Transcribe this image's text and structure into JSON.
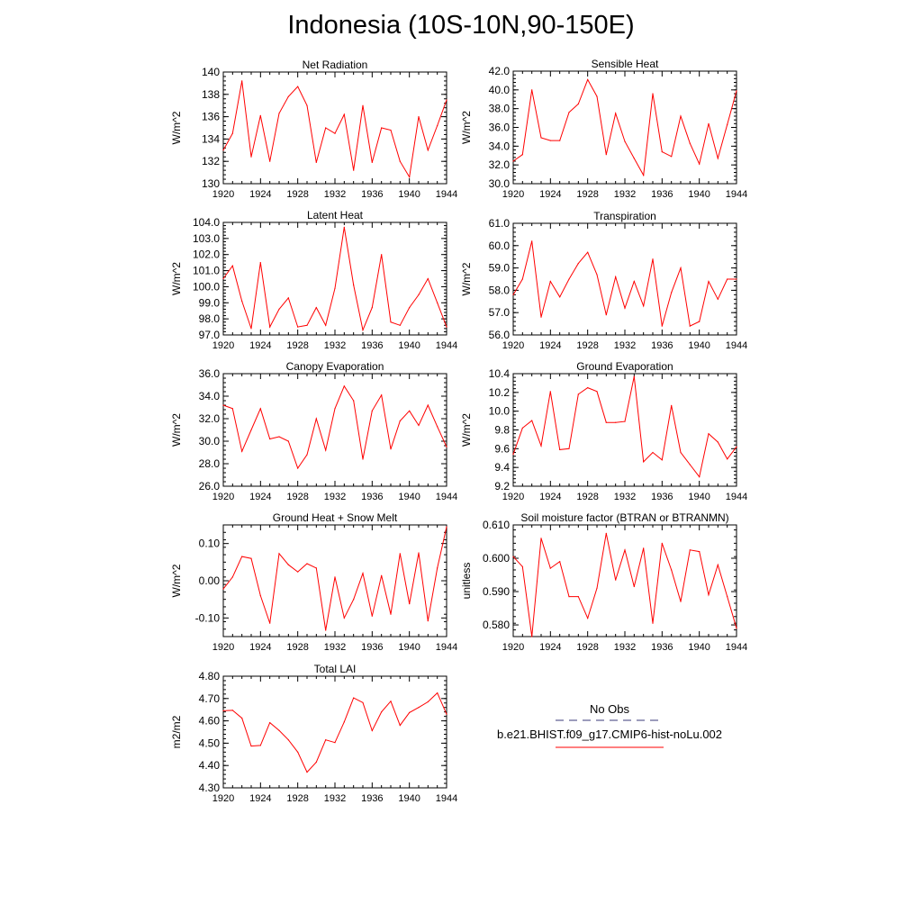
{
  "title": "Indonesia (10S-10N,90-150E)",
  "legend": {
    "obs_label": "No Obs",
    "obs_color": "#3a3a7a",
    "model_label": "b.e21.BHIST.f09_g17.CMIP6-hist-noLu.002",
    "model_color": "#ff0000"
  },
  "chart_data": [
    {
      "type": "line",
      "title": "Net Radiation",
      "ylabel": "W/m^2",
      "xlim": [
        1920,
        1944
      ],
      "ylim": [
        130,
        140
      ],
      "xticks": [
        "1920",
        "1924",
        "1928",
        "1932",
        "1936",
        "1940",
        "1944"
      ],
      "yticks": [
        "130",
        "132",
        "134",
        "136",
        "138",
        "140"
      ],
      "x": [
        1920,
        1921,
        1922,
        1923,
        1924,
        1925,
        1926,
        1927,
        1928,
        1929,
        1930,
        1931,
        1932,
        1933,
        1934,
        1935,
        1936,
        1937,
        1938,
        1939,
        1940,
        1941,
        1942,
        1943,
        1944
      ],
      "series": [
        {
          "values": [
            133.0,
            134.5,
            139.2,
            132.4,
            136.1,
            132.0,
            136.3,
            137.8,
            138.7,
            137.0,
            131.9,
            135.0,
            134.5,
            136.2,
            131.2,
            137.0,
            131.9,
            135.0,
            134.8,
            132.0,
            130.6,
            136.0,
            133.0,
            135.2,
            137.5
          ]
        }
      ]
    },
    {
      "type": "line",
      "title": "Sensible Heat",
      "ylabel": "W/m^2",
      "xlim": [
        1920,
        1944
      ],
      "ylim": [
        30,
        42
      ],
      "xticks": [
        "1920",
        "1924",
        "1928",
        "1932",
        "1936",
        "1940",
        "1944"
      ],
      "yticks": [
        "30.0",
        "32.0",
        "34.0",
        "36.0",
        "38.0",
        "40.0",
        "42.0"
      ],
      "x": [
        1920,
        1921,
        1922,
        1923,
        1924,
        1925,
        1926,
        1927,
        1928,
        1929,
        1930,
        1931,
        1932,
        1933,
        1934,
        1935,
        1936,
        1937,
        1938,
        1939,
        1940,
        1941,
        1942,
        1943,
        1944
      ],
      "series": [
        {
          "values": [
            32.4,
            33.1,
            40.0,
            34.9,
            34.6,
            34.6,
            37.6,
            38.5,
            41.1,
            39.3,
            33.1,
            37.5,
            34.5,
            32.7,
            30.9,
            39.6,
            33.4,
            32.9,
            37.2,
            34.3,
            32.1,
            36.4,
            32.7,
            36.3,
            39.9
          ]
        }
      ]
    },
    {
      "type": "line",
      "title": "Latent Heat",
      "ylabel": "W/m^2",
      "xlim": [
        1920,
        1944
      ],
      "ylim": [
        97,
        104
      ],
      "xticks": [
        "1920",
        "1924",
        "1928",
        "1932",
        "1936",
        "1940",
        "1944"
      ],
      "yticks": [
        "97.0",
        "98.0",
        "99.0",
        "100.0",
        "101.0",
        "102.0",
        "103.0",
        "104.0"
      ],
      "x": [
        1920,
        1921,
        1922,
        1923,
        1924,
        1925,
        1926,
        1927,
        1928,
        1929,
        1930,
        1931,
        1932,
        1933,
        1934,
        1935,
        1936,
        1937,
        1938,
        1939,
        1940,
        1941,
        1942,
        1943,
        1944
      ],
      "series": [
        {
          "values": [
            100.5,
            101.3,
            99.1,
            97.4,
            101.5,
            97.5,
            98.6,
            99.3,
            97.5,
            97.6,
            98.7,
            97.6,
            99.9,
            103.7,
            100.1,
            97.3,
            98.7,
            102.0,
            97.8,
            97.6,
            98.7,
            99.5,
            100.5,
            99.0,
            97.5
          ]
        }
      ]
    },
    {
      "type": "line",
      "title": "Transpiration",
      "ylabel": "W/m^2",
      "xlim": [
        1920,
        1944
      ],
      "ylim": [
        56,
        61
      ],
      "xticks": [
        "1920",
        "1924",
        "1928",
        "1932",
        "1936",
        "1940",
        "1944"
      ],
      "yticks": [
        "56.0",
        "57.0",
        "58.0",
        "59.0",
        "60.0",
        "61.0"
      ],
      "x": [
        1920,
        1921,
        1922,
        1923,
        1924,
        1925,
        1926,
        1927,
        1928,
        1929,
        1930,
        1931,
        1932,
        1933,
        1934,
        1935,
        1936,
        1937,
        1938,
        1939,
        1940,
        1941,
        1942,
        1943,
        1944
      ],
      "series": [
        {
          "values": [
            57.8,
            58.5,
            60.2,
            56.8,
            58.4,
            57.7,
            58.5,
            59.2,
            59.7,
            58.7,
            56.9,
            58.6,
            57.2,
            58.4,
            57.3,
            59.4,
            56.4,
            57.9,
            59.0,
            56.4,
            56.6,
            58.4,
            57.6,
            58.5,
            58.5
          ]
        }
      ]
    },
    {
      "type": "line",
      "title": "Canopy Evaporation",
      "ylabel": "W/m^2",
      "xlim": [
        1920,
        1944
      ],
      "ylim": [
        26,
        36
      ],
      "xticks": [
        "1920",
        "1924",
        "1928",
        "1932",
        "1936",
        "1940",
        "1944"
      ],
      "yticks": [
        "26.0",
        "28.0",
        "30.0",
        "32.0",
        "34.0",
        "36.0"
      ],
      "x": [
        1920,
        1921,
        1922,
        1923,
        1924,
        1925,
        1926,
        1927,
        1928,
        1929,
        1930,
        1931,
        1932,
        1933,
        1934,
        1935,
        1936,
        1937,
        1938,
        1939,
        1940,
        1941,
        1942,
        1943,
        1944
      ],
      "series": [
        {
          "values": [
            33.2,
            32.9,
            29.1,
            31.0,
            32.9,
            30.2,
            30.4,
            30.0,
            27.6,
            28.8,
            32.0,
            29.2,
            32.9,
            34.9,
            33.6,
            28.4,
            32.7,
            34.1,
            29.3,
            31.8,
            32.7,
            31.4,
            33.2,
            31.3,
            29.5
          ]
        }
      ]
    },
    {
      "type": "line",
      "title": "Ground Evaporation",
      "ylabel": "W/m^2",
      "xlim": [
        1920,
        1944
      ],
      "ylim": [
        9.2,
        10.4
      ],
      "xticks": [
        "1920",
        "1924",
        "1928",
        "1932",
        "1936",
        "1940",
        "1944"
      ],
      "yticks": [
        "9.2",
        "9.4",
        "9.6",
        "9.8",
        "10.0",
        "10.2",
        "10.4"
      ],
      "x": [
        1920,
        1921,
        1922,
        1923,
        1924,
        1925,
        1926,
        1927,
        1928,
        1929,
        1930,
        1931,
        1932,
        1933,
        1934,
        1935,
        1936,
        1937,
        1938,
        1939,
        1940,
        1941,
        1942,
        1943,
        1944
      ],
      "series": [
        {
          "values": [
            9.54,
            9.82,
            9.9,
            9.63,
            10.21,
            9.59,
            9.6,
            10.18,
            10.25,
            10.21,
            9.88,
            9.88,
            9.89,
            10.37,
            9.46,
            9.56,
            9.48,
            10.06,
            9.56,
            9.43,
            9.3,
            9.76,
            9.67,
            9.49,
            9.62
          ]
        }
      ]
    },
    {
      "type": "line",
      "title": "Ground Heat + Snow Melt",
      "ylabel": "W/m^2",
      "xlim": [
        1920,
        1944
      ],
      "ylim": [
        -0.15,
        0.15
      ],
      "xticks": [
        "1920",
        "1924",
        "1928",
        "1932",
        "1936",
        "1940",
        "1944"
      ],
      "yticks": [
        "-0.10",
        "0.00",
        "0.10"
      ],
      "ytick_values": [
        -0.1,
        0.0,
        0.1
      ],
      "x": [
        1920,
        1921,
        1922,
        1923,
        1924,
        1925,
        1926,
        1927,
        1928,
        1929,
        1930,
        1931,
        1932,
        1933,
        1934,
        1935,
        1936,
        1937,
        1938,
        1939,
        1940,
        1941,
        1942,
        1943,
        1944
      ],
      "series": [
        {
          "values": [
            -0.022,
            0.01,
            0.065,
            0.06,
            -0.04,
            -0.114,
            0.073,
            0.043,
            0.024,
            0.046,
            0.034,
            -0.133,
            0.01,
            -0.1,
            -0.05,
            0.02,
            -0.095,
            0.014,
            -0.09,
            0.073,
            -0.062,
            0.075,
            -0.108,
            0.034,
            0.145
          ]
        }
      ]
    },
    {
      "type": "line",
      "title": "Soil moisture factor (BTRAN or BTRANMN)",
      "ylabel": "unitless",
      "xlim": [
        1920,
        1944
      ],
      "ylim": [
        0.5765,
        0.61
      ],
      "xticks": [
        "1920",
        "1924",
        "1928",
        "1932",
        "1936",
        "1940",
        "1944"
      ],
      "yticks": [
        "0.580",
        "0.590",
        "0.600",
        "0.610"
      ],
      "ytick_values": [
        0.58,
        0.59,
        0.6,
        0.61
      ],
      "x": [
        1920,
        1921,
        1922,
        1923,
        1924,
        1925,
        1926,
        1927,
        1928,
        1929,
        1930,
        1931,
        1932,
        1933,
        1934,
        1935,
        1936,
        1937,
        1938,
        1939,
        1940,
        1941,
        1942,
        1943,
        1944
      ],
      "series": [
        {
          "values": [
            0.6005,
            0.5975,
            0.5765,
            0.606,
            0.597,
            0.599,
            0.5885,
            0.5885,
            0.582,
            0.591,
            0.6075,
            0.5935,
            0.6025,
            0.5915,
            0.603,
            0.5805,
            0.6045,
            0.5965,
            0.587,
            0.6025,
            0.602,
            0.589,
            0.598,
            0.5885,
            0.579
          ]
        }
      ]
    },
    {
      "type": "line",
      "title": "Total LAI",
      "ylabel": "m2/m2",
      "xlim": [
        1920,
        1944
      ],
      "ylim": [
        4.3,
        4.8
      ],
      "xticks": [
        "1920",
        "1924",
        "1928",
        "1932",
        "1936",
        "1940",
        "1944"
      ],
      "yticks": [
        "4.30",
        "4.40",
        "4.50",
        "4.60",
        "4.70",
        "4.80"
      ],
      "x": [
        1920,
        1921,
        1922,
        1923,
        1924,
        1925,
        1926,
        1927,
        1928,
        1929,
        1930,
        1931,
        1932,
        1933,
        1934,
        1935,
        1936,
        1937,
        1938,
        1939,
        1940,
        1941,
        1942,
        1943,
        1944
      ],
      "series": [
        {
          "values": [
            4.645,
            4.647,
            4.612,
            4.487,
            4.49,
            4.592,
            4.557,
            4.515,
            4.46,
            4.37,
            4.415,
            4.515,
            4.503,
            4.595,
            4.703,
            4.682,
            4.556,
            4.64,
            4.688,
            4.58,
            4.637,
            4.66,
            4.685,
            4.725,
            4.63
          ]
        }
      ]
    }
  ]
}
